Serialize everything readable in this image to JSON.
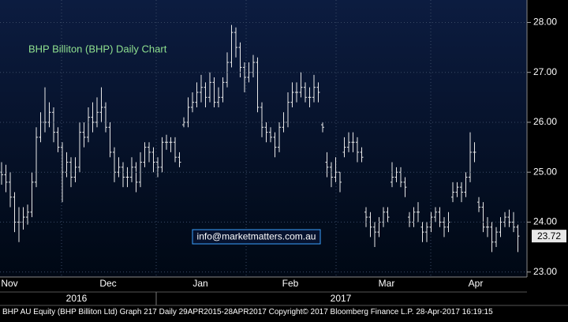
{
  "chart_data": {
    "type": "ohlc",
    "title": "BHP Billiton (BHP) Daily Chart",
    "annotation": "info@marketmatters.com.au",
    "footer": "BHP AU Equity (BHP Billiton Ltd) Graph 217  Daily 29APR2015-28APR2017  Copyright© 2017 Bloomberg Finance L.P.  28-Apr-2017 16:19:15",
    "months": [
      "Nov",
      "Dec",
      "Jan",
      "Feb",
      "Mar",
      "Apr"
    ],
    "years": [
      "2016",
      "2017"
    ],
    "color": "#e8e8e8",
    "title_color": "#8fe08f",
    "grid": true,
    "ylim": [
      22.9,
      28.45
    ],
    "yticks": [
      {
        "value": 23,
        "label": "23.00"
      },
      {
        "value": 24,
        "label": "24.00"
      },
      {
        "value": 25,
        "label": "25.00"
      },
      {
        "value": 26,
        "label": "26.00"
      },
      {
        "value": 27,
        "label": "27.00"
      },
      {
        "value": 28,
        "label": "28.00"
      }
    ],
    "open": [
      25.0,
      24.95,
      24.8,
      24.5,
      24.0,
      24.0,
      24.1,
      24.2,
      24.8,
      25.7,
      26.0,
      26.0,
      26.2,
      25.8,
      25.5,
      25.0,
      25.2,
      24.9,
      25.1,
      25.8,
      25.7,
      26.1,
      26.0,
      26.2,
      26.3,
      25.9,
      25.4,
      25.0,
      25.1,
      24.9,
      24.9,
      25.1,
      24.8,
      25.2,
      25.5,
      25.4,
      25.2,
      25.1,
      25.6,
      25.6,
      25.6,
      25.3,
      25.95,
      26.0,
      26.3,
      26.4,
      26.6,
      26.7,
      26.5,
      26.8,
      26.4,
      26.5,
      26.8,
      27.2,
      27.8,
      27.5,
      27.1,
      26.9,
      27.0,
      27.2,
      26.3,
      25.9,
      25.8,
      25.7,
      25.5,
      25.9,
      26.0,
      26.4,
      26.6,
      26.6,
      26.7,
      26.5,
      26.5,
      26.7,
      25.95,
      25.2,
      25.1,
      24.9,
      25.0,
      25.4,
      25.5,
      25.6,
      25.6,
      25.4,
      24.2,
      24.1,
      23.9,
      23.8,
      24.0,
      24.2,
      24.8,
      24.9,
      25.0,
      24.8,
      24.1,
      24.0,
      24.2,
      23.9,
      23.8,
      23.9,
      24.1,
      24.2,
      24.0,
      23.9,
      24.5,
      24.6,
      24.7,
      24.6,
      24.9,
      25.4,
      24.4,
      24.3,
      23.9,
      23.9,
      23.6,
      23.8,
      24.0,
      24.1,
      24.0,
      23.9
    ],
    "high": [
      25.2,
      25.15,
      25.0,
      24.6,
      24.3,
      24.3,
      24.35,
      25.0,
      25.9,
      26.2,
      26.7,
      26.4,
      26.3,
      25.9,
      25.6,
      25.4,
      25.3,
      25.3,
      26.0,
      26.0,
      26.3,
      26.4,
      26.5,
      26.7,
      26.4,
      26.0,
      25.5,
      25.3,
      25.2,
      25.1,
      25.3,
      25.2,
      25.4,
      25.6,
      25.6,
      25.5,
      25.3,
      25.7,
      25.75,
      25.7,
      25.7,
      25.4,
      26.1,
      26.5,
      26.6,
      26.8,
      26.95,
      26.8,
      27.0,
      26.9,
      26.7,
      26.9,
      27.4,
      27.95,
      27.9,
      27.6,
      27.2,
      27.2,
      27.35,
      27.3,
      26.4,
      26.0,
      25.9,
      25.8,
      26.0,
      26.2,
      26.6,
      26.8,
      26.8,
      27.0,
      26.8,
      26.7,
      26.95,
      26.8,
      26.0,
      25.4,
      25.2,
      25.3,
      25.0,
      25.7,
      25.8,
      25.8,
      25.7,
      25.5,
      24.3,
      24.2,
      24.0,
      24.1,
      24.3,
      24.3,
      25.2,
      25.1,
      25.1,
      24.9,
      24.2,
      24.3,
      24.4,
      24.0,
      24.0,
      24.2,
      24.3,
      24.3,
      24.1,
      24.2,
      24.8,
      24.8,
      24.8,
      25.0,
      25.8,
      25.6,
      24.5,
      24.4,
      24.1,
      24.0,
      23.9,
      24.1,
      24.2,
      24.25,
      24.2,
      23.95
    ],
    "low": [
      24.75,
      24.6,
      24.3,
      23.8,
      23.6,
      23.85,
      23.95,
      24.1,
      24.7,
      25.6,
      25.8,
      25.9,
      25.6,
      25.4,
      24.4,
      24.9,
      24.7,
      24.8,
      25.0,
      25.5,
      25.6,
      25.8,
      25.9,
      26.0,
      25.8,
      25.3,
      24.8,
      24.9,
      24.7,
      24.7,
      24.8,
      24.6,
      24.7,
      25.1,
      25.2,
      25.0,
      24.9,
      25.0,
      25.45,
      25.4,
      25.2,
      25.1,
      25.9,
      25.9,
      26.2,
      26.3,
      26.4,
      26.3,
      26.4,
      26.3,
      26.3,
      26.4,
      26.7,
      27.1,
      27.3,
      26.9,
      26.6,
      26.8,
      26.9,
      26.2,
      25.7,
      25.6,
      25.6,
      25.3,
      25.4,
      25.8,
      25.9,
      26.3,
      26.4,
      26.5,
      26.4,
      26.3,
      26.4,
      26.4,
      25.8,
      24.9,
      24.7,
      24.8,
      24.6,
      25.3,
      25.4,
      25.4,
      25.2,
      25.2,
      23.9,
      23.7,
      23.5,
      23.7,
      23.9,
      24.0,
      24.7,
      24.8,
      24.7,
      24.5,
      23.9,
      23.9,
      24.0,
      23.6,
      23.6,
      23.8,
      24.0,
      23.9,
      23.7,
      23.8,
      24.4,
      24.5,
      24.4,
      24.5,
      24.8,
      25.2,
      24.2,
      23.8,
      23.7,
      23.4,
      23.5,
      23.7,
      23.9,
      23.9,
      23.8,
      23.4
    ],
    "close": [
      24.95,
      24.8,
      24.5,
      24.0,
      24.0,
      24.1,
      24.2,
      24.8,
      25.7,
      26.0,
      26.0,
      26.2,
      25.8,
      25.5,
      25.0,
      25.2,
      24.9,
      25.1,
      25.8,
      25.7,
      26.1,
      26.0,
      26.2,
      26.3,
      25.9,
      25.4,
      25.0,
      25.1,
      24.9,
      24.9,
      25.1,
      24.8,
      25.2,
      25.5,
      25.4,
      25.2,
      25.1,
      25.6,
      25.6,
      25.6,
      25.3,
      25.2,
      26.0,
      26.3,
      26.4,
      26.6,
      26.7,
      26.5,
      26.8,
      26.4,
      26.5,
      26.8,
      27.2,
      27.8,
      27.5,
      27.1,
      26.9,
      27.0,
      27.2,
      26.3,
      25.9,
      25.8,
      25.7,
      25.5,
      25.9,
      26.0,
      26.4,
      26.6,
      26.6,
      26.7,
      26.5,
      26.5,
      26.7,
      26.6,
      25.9,
      25.1,
      24.9,
      25.0,
      24.8,
      25.5,
      25.6,
      25.6,
      25.4,
      25.3,
      24.1,
      23.9,
      23.8,
      24.0,
      24.2,
      24.1,
      24.9,
      25.0,
      24.8,
      24.7,
      24.0,
      24.2,
      24.2,
      23.8,
      23.9,
      24.1,
      24.2,
      24.0,
      23.9,
      24.0,
      24.6,
      24.7,
      24.6,
      24.9,
      25.4,
      25.4,
      24.3,
      23.9,
      23.9,
      23.6,
      23.8,
      24.0,
      24.1,
      24.0,
      23.9,
      23.72
    ]
  }
}
